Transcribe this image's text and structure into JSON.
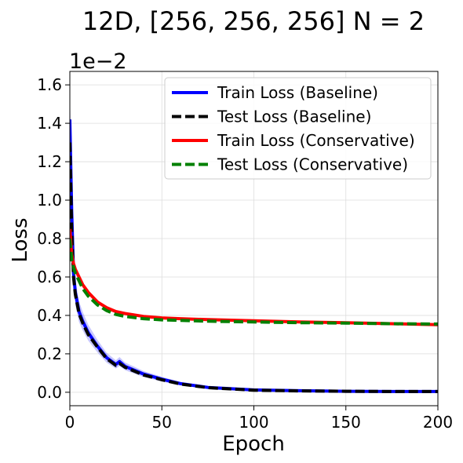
{
  "chart_data": {
    "type": "line",
    "title": "12D, [256, 256, 256]  N = 2",
    "xlabel": "Epoch",
    "ylabel": "Loss",
    "y_scale_label": "1e−2",
    "xlim": [
      0,
      200
    ],
    "ylim": [
      -0.07,
      1.67
    ],
    "x_ticks": [
      0,
      50,
      100,
      150,
      200
    ],
    "x_tick_labels": [
      "0",
      "50",
      "100",
      "150",
      "200"
    ],
    "y_ticks": [
      0.0,
      0.2,
      0.4,
      0.6,
      0.8,
      1.0,
      1.2,
      1.4,
      1.6
    ],
    "y_tick_labels": [
      "0.0",
      "0.2",
      "0.4",
      "0.6",
      "0.8",
      "1.0",
      "1.2",
      "1.4",
      "1.6"
    ],
    "grid": true,
    "legend_position": "top-right",
    "series": [
      {
        "name": "Train Loss (Baseline)",
        "color": "#0000ff",
        "style": "solid",
        "band": true,
        "x": [
          0,
          1,
          2,
          3,
          5,
          7,
          10,
          15,
          20,
          25,
          27,
          30,
          35,
          40,
          50,
          60,
          75,
          100,
          125,
          150,
          175,
          200
        ],
        "y": [
          1.42,
          0.95,
          0.62,
          0.52,
          0.42,
          0.37,
          0.31,
          0.24,
          0.18,
          0.145,
          0.16,
          0.135,
          0.115,
          0.095,
          0.068,
          0.045,
          0.025,
          0.012,
          0.008,
          0.005,
          0.004,
          0.004
        ]
      },
      {
        "name": "Test Loss (Baseline)",
        "color": "#000000",
        "style": "dashed",
        "band": false,
        "x": [
          0,
          1,
          2,
          3,
          5,
          7,
          10,
          15,
          20,
          25,
          27,
          30,
          35,
          40,
          50,
          60,
          75,
          100,
          125,
          150,
          175,
          200
        ],
        "y": [
          1.3,
          0.85,
          0.6,
          0.51,
          0.41,
          0.36,
          0.3,
          0.235,
          0.175,
          0.14,
          0.15,
          0.13,
          0.11,
          0.09,
          0.065,
          0.043,
          0.024,
          0.011,
          0.007,
          0.005,
          0.004,
          0.004
        ]
      },
      {
        "name": "Train Loss (Conservative)",
        "color": "#ff0000",
        "style": "solid",
        "band": false,
        "x": [
          0,
          1,
          2,
          3,
          5,
          7,
          10,
          15,
          20,
          25,
          30,
          40,
          50,
          60,
          75,
          100,
          125,
          150,
          175,
          200
        ],
        "y": [
          0.85,
          0.72,
          0.67,
          0.64,
          0.6,
          0.56,
          0.52,
          0.47,
          0.44,
          0.42,
          0.41,
          0.395,
          0.387,
          0.383,
          0.378,
          0.372,
          0.366,
          0.362,
          0.357,
          0.352
        ]
      },
      {
        "name": "Test Loss (Conservative)",
        "color": "#008000",
        "style": "dashed",
        "band": false,
        "x": [
          0,
          1,
          2,
          3,
          5,
          7,
          10,
          15,
          20,
          25,
          30,
          40,
          50,
          60,
          75,
          100,
          125,
          150,
          175,
          200
        ],
        "y": [
          0.8,
          0.69,
          0.65,
          0.62,
          0.58,
          0.54,
          0.5,
          0.455,
          0.425,
          0.405,
          0.395,
          0.383,
          0.377,
          0.374,
          0.37,
          0.366,
          0.362,
          0.36,
          0.357,
          0.355
        ]
      }
    ]
  }
}
